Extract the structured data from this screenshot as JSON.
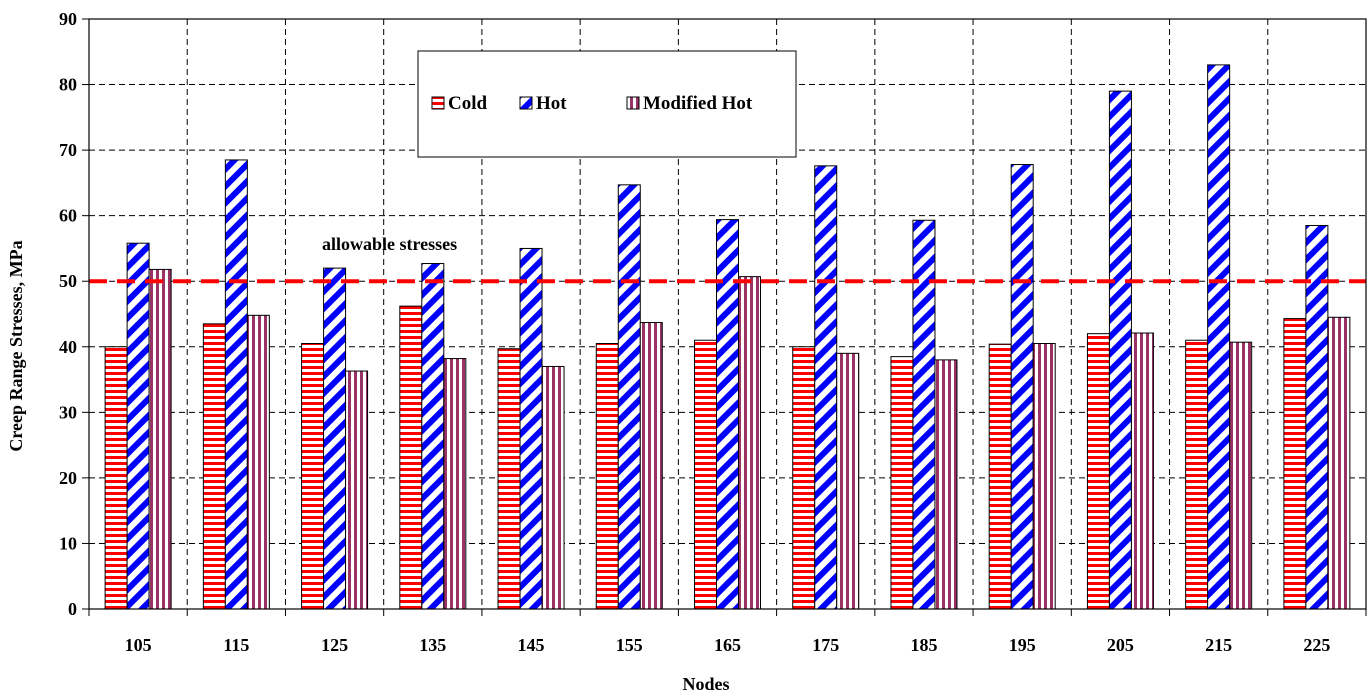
{
  "chart_data": {
    "type": "bar",
    "title": "",
    "xlabel": "Nodes",
    "ylabel": "Creep Range Stresses, MPa",
    "ylim": [
      0,
      90
    ],
    "yticks": [
      0,
      10,
      20,
      30,
      40,
      50,
      60,
      70,
      80,
      90
    ],
    "grid": true,
    "legend_position": "top-center",
    "categories": [
      "105",
      "115",
      "125",
      "135",
      "145",
      "155",
      "165",
      "175",
      "185",
      "195",
      "205",
      "215",
      "225"
    ],
    "series": [
      {
        "name": "Cold",
        "pattern": "horizontal-stripes",
        "color": "#ff0000",
        "values": [
          40.0,
          43.5,
          40.5,
          46.2,
          39.7,
          40.5,
          41.0,
          40.0,
          38.5,
          40.4,
          42.0,
          41.0,
          44.3
        ]
      },
      {
        "name": "Hot",
        "pattern": "diagonal-stripes",
        "color": "#0000ff",
        "values": [
          55.8,
          68.5,
          52.0,
          52.7,
          55.0,
          64.7,
          59.4,
          67.6,
          59.3,
          67.8,
          79.0,
          83.0,
          58.5
        ]
      },
      {
        "name": "Modified Hot",
        "pattern": "vertical-stripes",
        "color": "#993366",
        "values": [
          51.8,
          44.8,
          36.3,
          38.2,
          37.0,
          43.7,
          50.7,
          39.0,
          38.0,
          40.5,
          42.1,
          40.7,
          44.5
        ]
      }
    ],
    "reference_line": {
      "value": 50,
      "label": "allowable stresses",
      "color": "#ff0000",
      "style": "dashed"
    }
  }
}
